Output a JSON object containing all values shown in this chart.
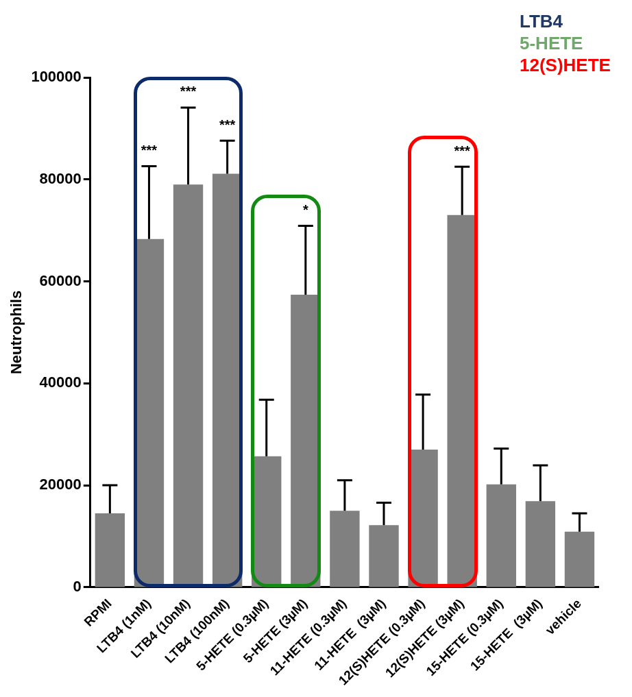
{
  "chart_data": {
    "type": "bar",
    "ylabel": "Neutrophils",
    "categories": [
      "RPMI",
      "LTB4 (1nM)",
      "LTB4 (10nM)",
      "LTB4 (100nM)",
      "5-HETE (0.3µM)",
      "5-HETE (3µM)",
      "11-HETE (0.3µM)",
      "11-HETE  (3µM)",
      "12(S)HETE (0.3µM)",
      "12(S)HETE (3µM)",
      "15-HETE (0.3µM)",
      "15-HETE  (3µM)",
      "vehicle"
    ],
    "values": [
      14500,
      68300,
      79000,
      81100,
      25700,
      57400,
      15000,
      12200,
      27000,
      73000,
      20200,
      16900,
      10900
    ],
    "errors": [
      [
        14500,
        20000
      ],
      [
        68300,
        82600
      ],
      [
        79000,
        94100
      ],
      [
        81100,
        87600
      ],
      [
        25700,
        36800
      ],
      [
        57400,
        70900
      ],
      [
        15000,
        21000
      ],
      [
        12200,
        16600
      ],
      [
        27000,
        37800
      ],
      [
        73000,
        82500
      ],
      [
        20200,
        27200
      ],
      [
        16900,
        23900
      ],
      [
        10900,
        14500
      ]
    ],
    "color": "#808080",
    "ylim": [
      0,
      100000
    ],
    "yticks": [
      0,
      20000,
      40000,
      60000,
      80000,
      100000
    ],
    "grid": false,
    "annotations": [
      "LTB4",
      "5-HETE",
      "12(S)HETE",
      {
        "text": "***",
        "x": "LTB4 (1nM)",
        "y": 82600
      },
      {
        "text": "***",
        "x": "LTB4 (10nM)",
        "y": 94100
      },
      {
        "text": "***",
        "x": "LTB4 (100nM)",
        "y": 87600
      },
      {
        "text": "*",
        "x": "5-HETE (3µM)",
        "y": 70900
      },
      {
        "text": "***",
        "x": "12(S)HETE (3µM)",
        "y": 82500
      }
    ],
    "legend": false
  }
}
